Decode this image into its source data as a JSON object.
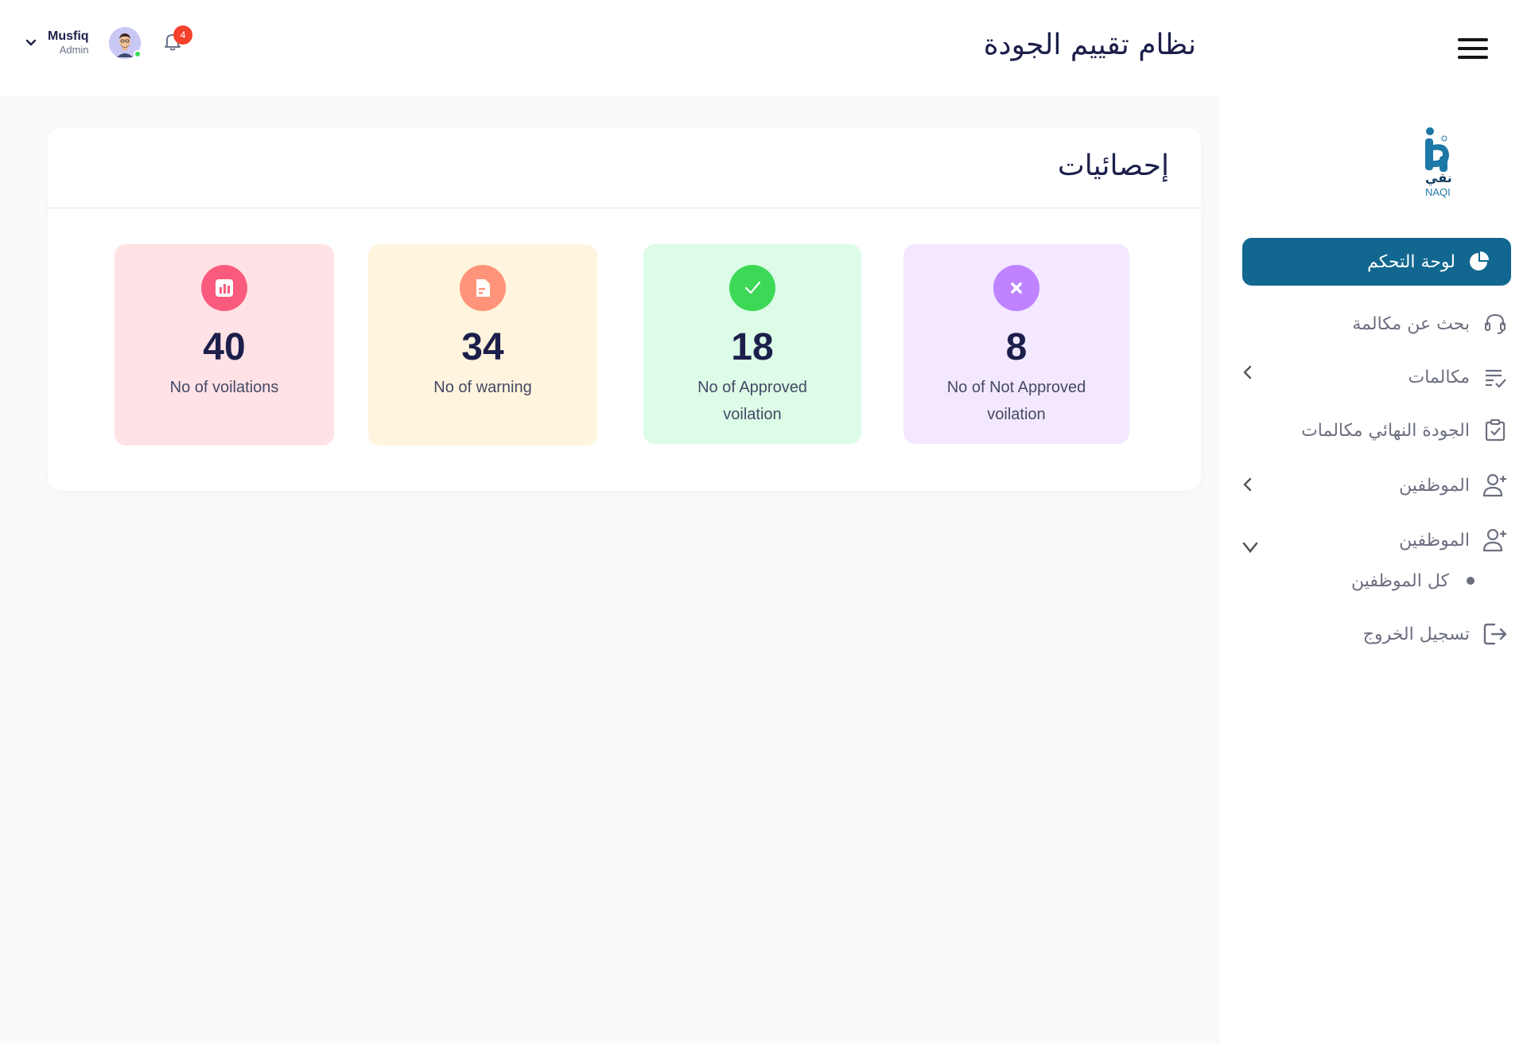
{
  "header": {
    "title": "نظام تقييم الجودة",
    "user": {
      "name": "Musfiq",
      "role": "Admin"
    },
    "notifications_count": "4"
  },
  "sidebar": {
    "logo_text_ar": "نقي",
    "logo_text_en": "NAQI",
    "items": [
      {
        "label": "لوحة التحكم",
        "icon": "pie-chart-icon",
        "active": true
      },
      {
        "label": "بحث عن مكالمة",
        "icon": "headset-icon"
      },
      {
        "label": "مكالمات",
        "icon": "list-check-icon",
        "expandable": true
      },
      {
        "label": "الجودة النهائي مكالمات",
        "icon": "clipboard-check-icon"
      },
      {
        "label": "الموظفين",
        "icon": "user-plus-icon",
        "expandable": true
      },
      {
        "label": "الموظفين",
        "icon": "user-plus-icon",
        "expanded": true
      },
      {
        "label": "كل الموظفين",
        "sub": true
      },
      {
        "label": "تسجيل الخروج",
        "icon": "logout-icon"
      }
    ]
  },
  "stats": {
    "title": "إحصائيات",
    "cards": [
      {
        "value": "40",
        "caption": "No of  voilations",
        "icon": "bar-chart-icon",
        "bg": "#ffe2e6",
        "icon_bg": "#fa5a7d"
      },
      {
        "value": "34",
        "caption": "No of  warning",
        "icon": "document-icon",
        "bg": "#fff4de",
        "icon_bg": "#ff947a"
      },
      {
        "value": "18",
        "caption": "No of  Approved\nvoilation",
        "icon": "check-icon",
        "bg": "#dcfce7",
        "icon_bg": "#3cd856"
      },
      {
        "value": "8",
        "caption": "No of Not Approved\nvoilation",
        "icon": "x-icon",
        "bg": "#f3e8ff",
        "icon_bg": "#bf83ff"
      }
    ]
  }
}
